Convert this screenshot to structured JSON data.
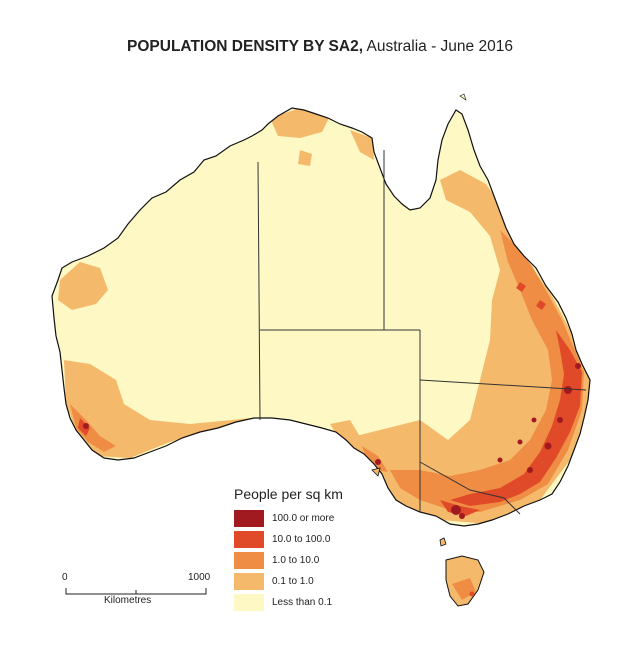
{
  "title": {
    "bold": "POPULATION DENSITY BY SA2,",
    "rest": " Australia - June 2016"
  },
  "legend": {
    "title": "People per sq km",
    "classes": [
      {
        "label": "100.0 or more",
        "color": "#a11a1f"
      },
      {
        "label": "10.0 to 100.0",
        "color": "#e14a28"
      },
      {
        "label": "1.0 to 10.0",
        "color": "#f08d44"
      },
      {
        "label": "0.1 to 1.0",
        "color": "#f5b96b"
      },
      {
        "label": "Less than 0.1",
        "color": "#fdf8c4"
      }
    ]
  },
  "scale": {
    "min_label": "0",
    "max_label": "1000",
    "unit": "Kilometres"
  },
  "colors": {
    "coast": "#111111",
    "border": "#333333"
  }
}
